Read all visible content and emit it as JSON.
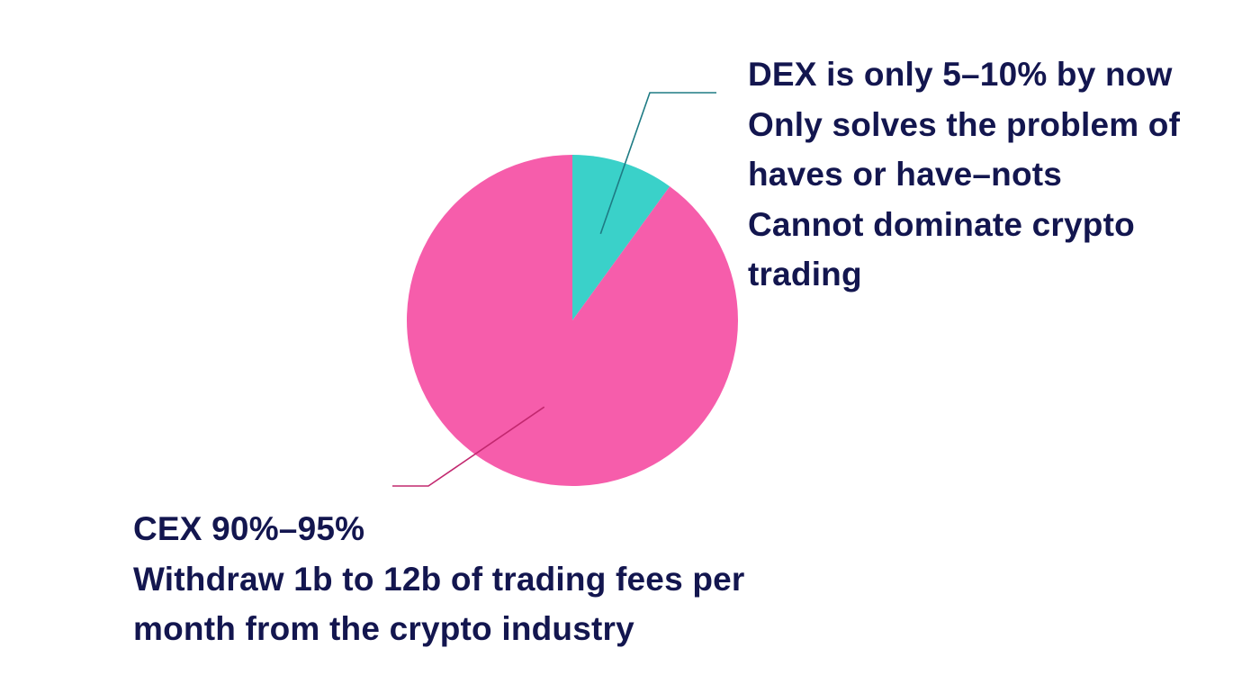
{
  "chart_data": {
    "type": "pie",
    "slices": [
      {
        "label": "DEX",
        "value": 10,
        "color": "#3ad1c9",
        "leader_color": "#1e7b84",
        "annotation_lines": [
          "DEX is only 5–10% by now",
          "Only solves the problem of",
          "haves or have–nots",
          "Cannot dominate crypto",
          "trading"
        ]
      },
      {
        "label": "CEX",
        "value": 90,
        "color": "#f65dab",
        "leader_color": "#c2286f",
        "annotation_lines": [
          "CEX 90%–95%",
          "Withdraw 1b to 12b of trading fees per",
          "month from the crypto industry"
        ]
      }
    ]
  }
}
